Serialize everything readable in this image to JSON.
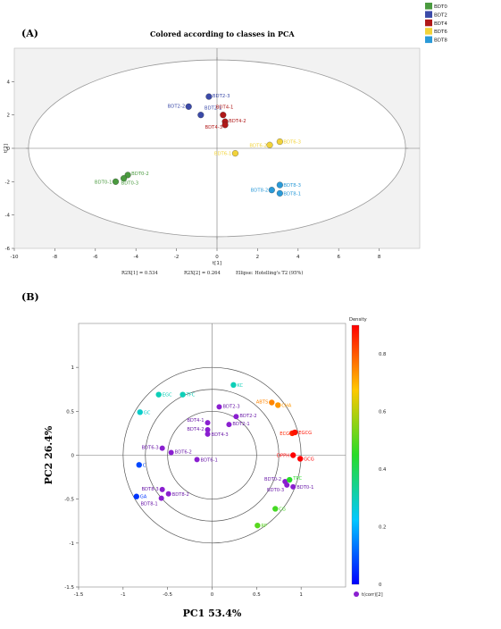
{
  "chart_data": [
    {
      "type": "scatter",
      "panel_label": "(A)",
      "title": "Colored according to classes in PCA",
      "xlabel": "t[1]",
      "ylabel": "t[2]",
      "xlim": [
        -10,
        10
      ],
      "ylim": [
        -6,
        6
      ],
      "xticks": [
        -10,
        -8,
        -6,
        -4,
        -2,
        0,
        2,
        4,
        6,
        8
      ],
      "yticks": [
        -6,
        -4,
        -2,
        0,
        2,
        4
      ],
      "footer": [
        "R2X[1] = 0.534",
        "R2X[2] = 0.264",
        "Ellipse: Hotelling's T2 (95%)"
      ],
      "legend": [
        {
          "name": "BDT0",
          "color": "#4a9a3f"
        },
        {
          "name": "BDT2",
          "color": "#3b4aa8"
        },
        {
          "name": "BDT4",
          "color": "#b01818"
        },
        {
          "name": "BDT6",
          "color": "#f2d33a"
        },
        {
          "name": "BDT8",
          "color": "#2a9ad8"
        }
      ],
      "ellipse": {
        "cx": 0,
        "cy": 0,
        "rx": 9.3,
        "ry": 5.3
      },
      "points": [
        {
          "label": "BDT0-1",
          "x": -5.0,
          "y": -2.0,
          "group": 0
        },
        {
          "label": "BDT0-2",
          "x": -4.4,
          "y": -1.6,
          "group": 0
        },
        {
          "label": "BDT0-3",
          "x": -4.6,
          "y": -1.8,
          "group": 0
        },
        {
          "label": "BDT2-1",
          "x": -0.8,
          "y": 2.0,
          "group": 1
        },
        {
          "label": "BDT2-2",
          "x": -1.4,
          "y": 2.5,
          "group": 1
        },
        {
          "label": "BDT2-3",
          "x": -0.4,
          "y": 3.1,
          "group": 1
        },
        {
          "label": "BDT4-1",
          "x": 0.3,
          "y": 2.0,
          "group": 2
        },
        {
          "label": "BDT4-2",
          "x": 0.4,
          "y": 1.6,
          "group": 2
        },
        {
          "label": "BDT4-3",
          "x": 0.4,
          "y": 1.4,
          "group": 2
        },
        {
          "label": "BDT6-1",
          "x": 0.9,
          "y": -0.3,
          "group": 3
        },
        {
          "label": "BDT6-2",
          "x": 2.6,
          "y": 0.2,
          "group": 3
        },
        {
          "label": "BDT6-3",
          "x": 3.1,
          "y": 0.4,
          "group": 3
        },
        {
          "label": "BDT8-1",
          "x": 3.1,
          "y": -2.7,
          "group": 4
        },
        {
          "label": "BDT8-2",
          "x": 2.7,
          "y": -2.5,
          "group": 4
        },
        {
          "label": "BDT8-3",
          "x": 3.1,
          "y": -2.2,
          "group": 4
        }
      ]
    },
    {
      "type": "scatter",
      "panel_label": "(B)",
      "xlabel": "PC1 53.4%",
      "ylabel": "PC2  26.4%",
      "xlim": [
        -1.5,
        1.5
      ],
      "ylim": [
        -1.5,
        1.5
      ],
      "xticks": [
        -1.5,
        -1,
        -0.5,
        0,
        0.5,
        1
      ],
      "yticks": [
        -1.5,
        -1,
        -0.5,
        0,
        0.5,
        1
      ],
      "circles": [
        1.0,
        0.75,
        0.5
      ],
      "colorbar": {
        "title": "Density",
        "min": 0,
        "max": 0.9,
        "ticks": [
          0,
          0.2,
          0.4,
          0.6,
          0.8
        ]
      },
      "legend_item": "t(corr)[2]",
      "variables": [
        {
          "label": "EGC",
          "x": -0.6,
          "y": 0.69,
          "density": 0.3
        },
        {
          "label": "TFC",
          "x": -0.33,
          "y": 0.69,
          "density": 0.3
        },
        {
          "label": "KC",
          "x": 0.24,
          "y": 0.8,
          "density": 0.3
        },
        {
          "label": "GC",
          "x": -0.81,
          "y": 0.49,
          "density": 0.28
        },
        {
          "label": "ABTS",
          "x": 0.67,
          "y": 0.6,
          "density": 0.75
        },
        {
          "label": "CHA",
          "x": 0.74,
          "y": 0.57,
          "density": 0.73
        },
        {
          "label": "ECG",
          "x": 0.9,
          "y": 0.25,
          "density": 0.86
        },
        {
          "label": "EGCG",
          "x": 0.93,
          "y": 0.26,
          "density": 0.88
        },
        {
          "label": "DPPH",
          "x": 0.91,
          "y": 0.0,
          "density": 0.93
        },
        {
          "label": "GCG",
          "x": 0.99,
          "y": -0.04,
          "density": 0.93
        },
        {
          "label": "C",
          "x": -0.82,
          "y": -0.11,
          "density": 0.08
        },
        {
          "label": "GA",
          "x": -0.85,
          "y": -0.47,
          "density": 0.06
        },
        {
          "label": "TPC",
          "x": 0.87,
          "y": -0.28,
          "density": 0.45
        },
        {
          "label": "CG",
          "x": 0.71,
          "y": -0.61,
          "density": 0.48
        },
        {
          "label": "RP",
          "x": 0.51,
          "y": -0.8,
          "density": 0.5
        }
      ],
      "observations": [
        {
          "label": "BDT2-3",
          "x": 0.08,
          "y": 0.55
        },
        {
          "label": "BDT2-2",
          "x": 0.27,
          "y": 0.44
        },
        {
          "label": "BDT2-1",
          "x": 0.19,
          "y": 0.35
        },
        {
          "label": "BDT4-1",
          "x": -0.05,
          "y": 0.37
        },
        {
          "label": "BDT4-2",
          "x": -0.05,
          "y": 0.29
        },
        {
          "label": "BDT4-3",
          "x": -0.05,
          "y": 0.24
        },
        {
          "label": "BDT6-3",
          "x": -0.56,
          "y": 0.08
        },
        {
          "label": "BDT6-2",
          "x": -0.46,
          "y": 0.03
        },
        {
          "label": "BDT6-1",
          "x": -0.17,
          "y": -0.05
        },
        {
          "label": "BDT0-2",
          "x": 0.82,
          "y": -0.3
        },
        {
          "label": "BDT0-3",
          "x": 0.84,
          "y": -0.34
        },
        {
          "label": "BDT0-1",
          "x": 0.91,
          "y": -0.36
        },
        {
          "label": "BDT8-3",
          "x": -0.56,
          "y": -0.39
        },
        {
          "label": "BDT8-2",
          "x": -0.49,
          "y": -0.44
        },
        {
          "label": "BDT8-1",
          "x": -0.57,
          "y": -0.49
        }
      ]
    }
  ]
}
